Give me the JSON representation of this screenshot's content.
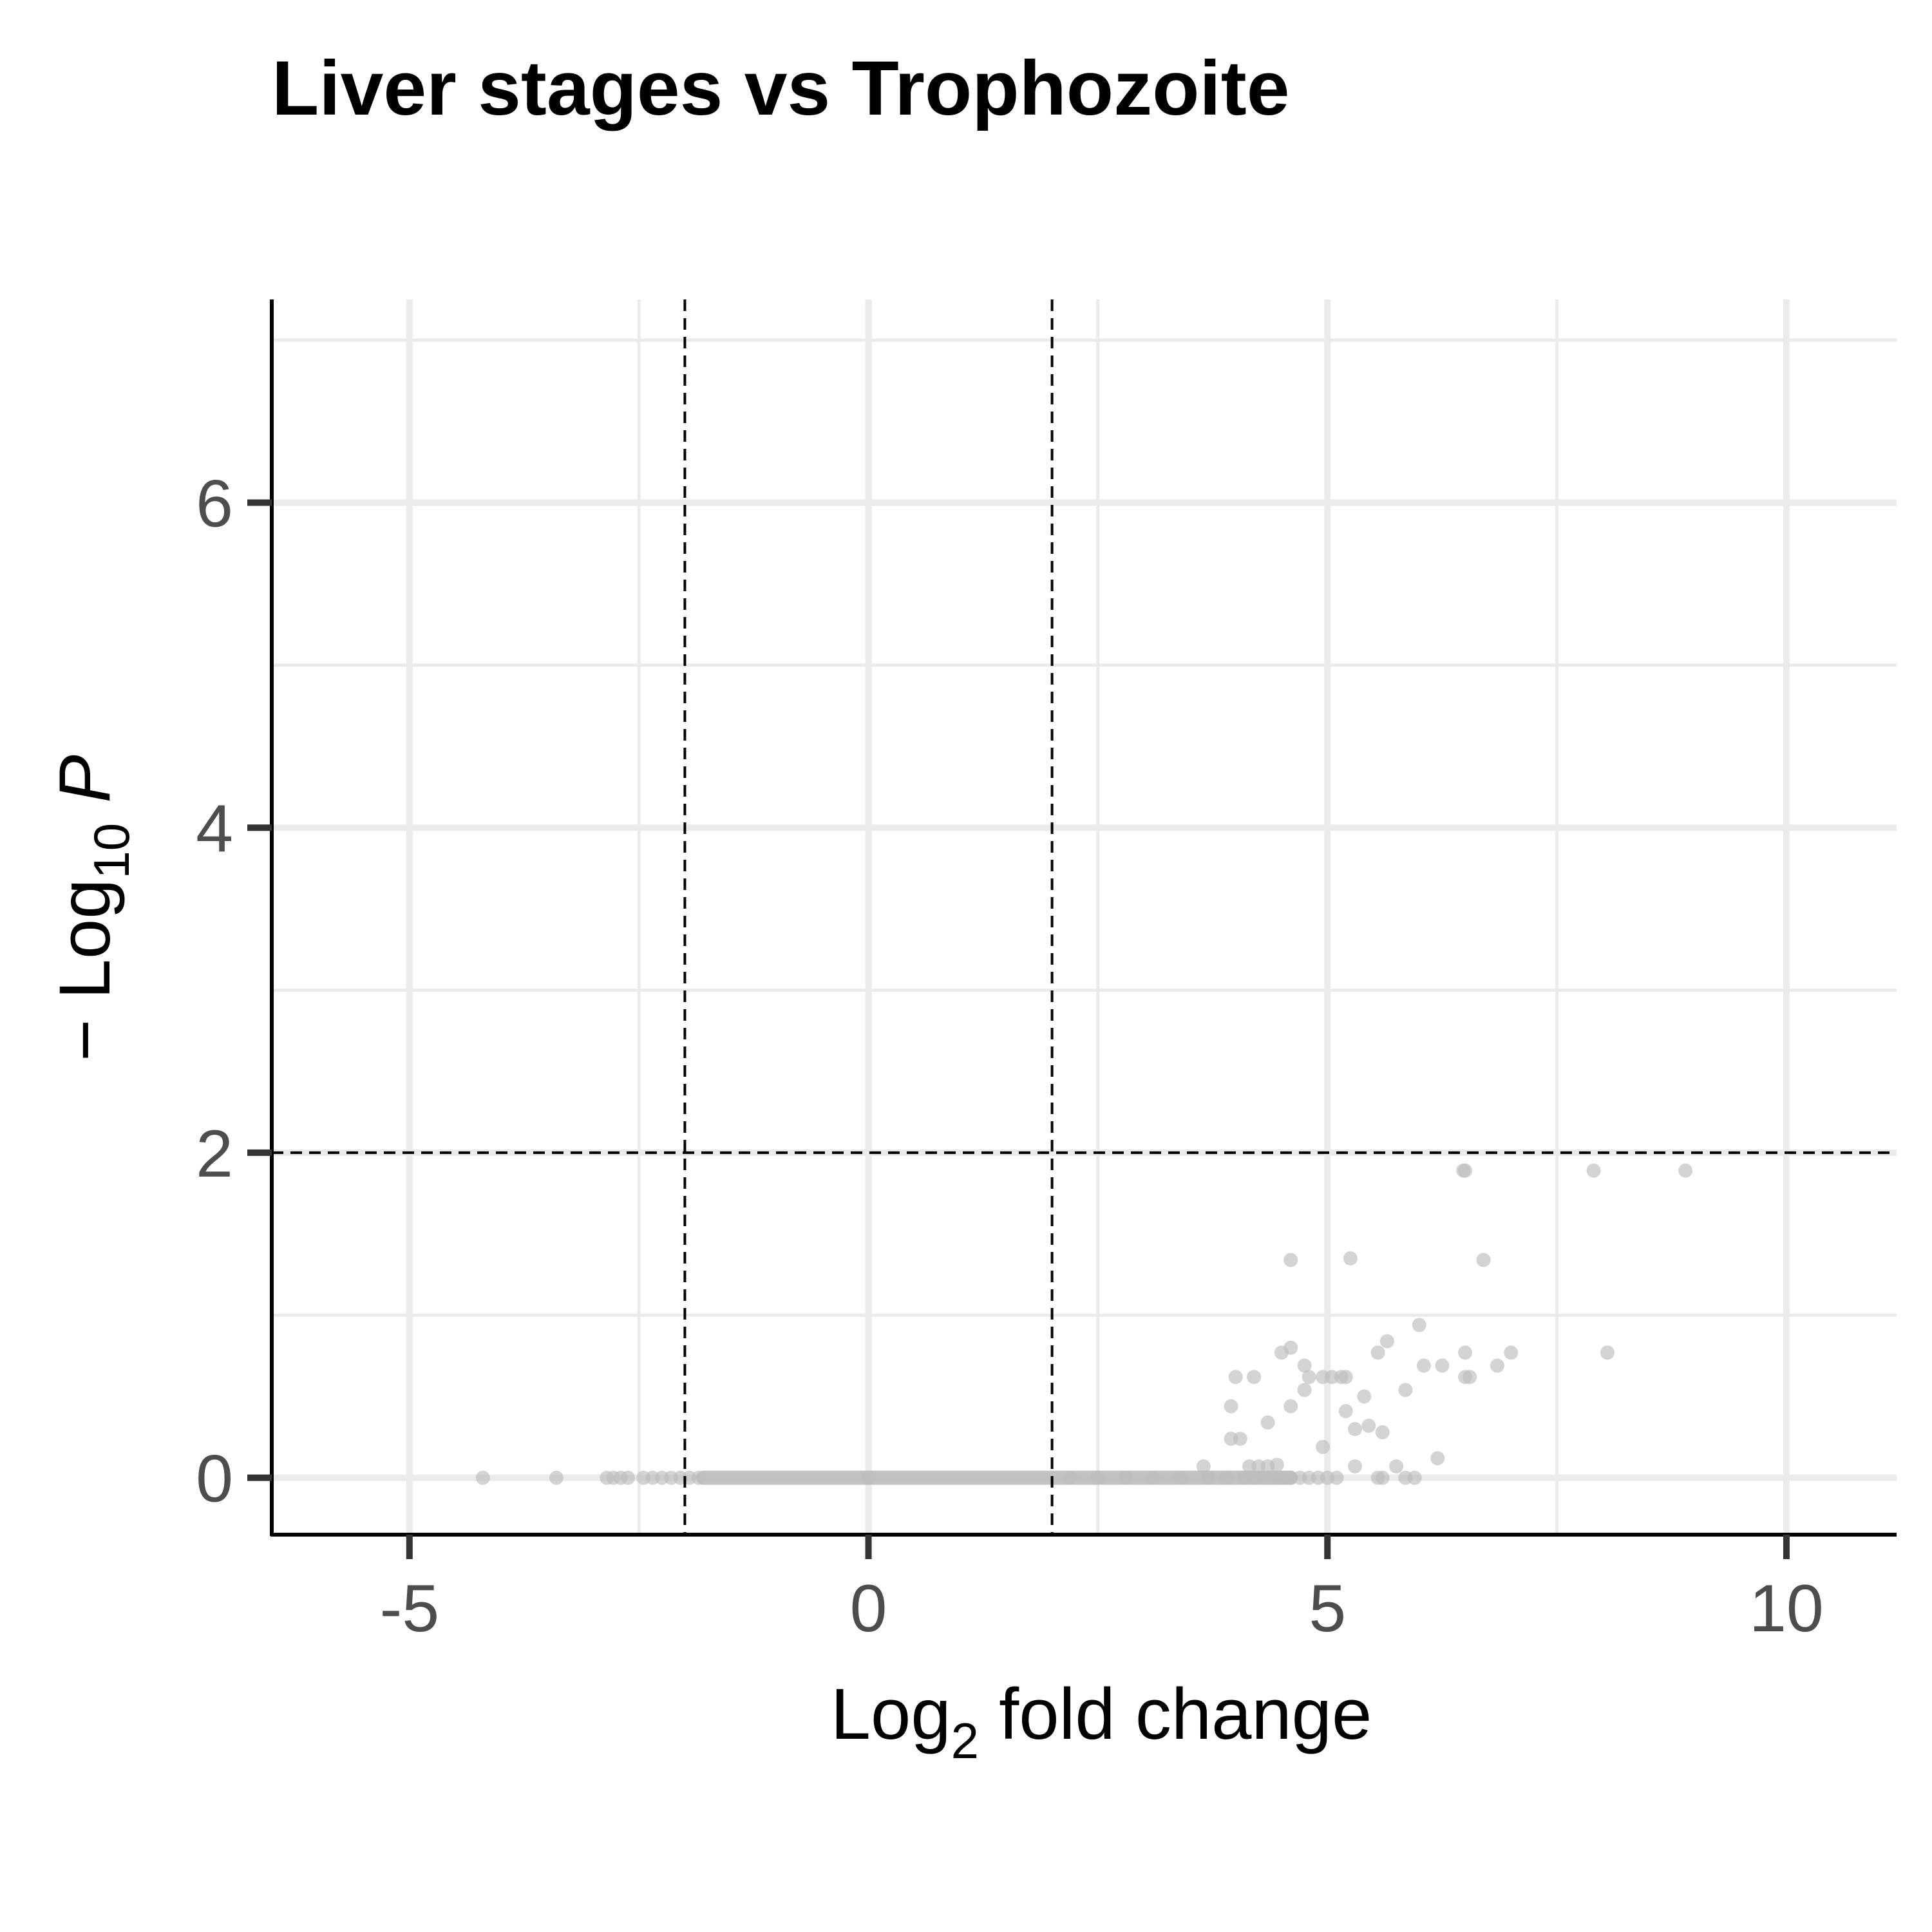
{
  "chart_data": {
    "type": "scatter",
    "title": "Liver stages vs Trophozoite",
    "xlabel": {
      "base": "Log",
      "sub": "2",
      "rest": " fold change"
    },
    "ylabel": {
      "prefix": "− Log",
      "sub": "10",
      "italic": " P"
    },
    "xlim": [
      -6.5,
      11.2
    ],
    "ylim": [
      -0.35,
      7.25
    ],
    "x_ticks": [
      -5,
      0,
      5,
      10
    ],
    "x_tick_labels": [
      "-5",
      "0",
      "5",
      "10"
    ],
    "y_ticks": [
      0,
      2,
      4,
      6
    ],
    "y_tick_labels": [
      "0",
      "2",
      "4",
      "6"
    ],
    "grid": true,
    "point_color": "#bdbdbd",
    "threshold_color": "#000000",
    "thresholds": {
      "x": [
        -2,
        2
      ],
      "y": 2
    },
    "series": [
      {
        "x": [
          -4.2,
          -3.4,
          -2.85,
          -2.78,
          -2.7,
          -2.62,
          -2.45,
          -2.35,
          -2.25,
          -2.15,
          -2.05,
          -1.95,
          -1.85,
          2.2,
          2.5,
          2.8,
          3.1,
          3.4,
          3.7,
          3.9,
          4.1,
          4.2,
          4.3,
          4.4,
          4.5,
          4.6,
          4.7,
          4.8,
          4.9,
          5.0,
          5.1,
          5.55,
          5.6,
          5.95,
          3.65,
          4.15,
          4.25,
          4.35,
          4.45,
          4.55,
          5.3,
          5.75,
          5.85,
          6.2,
          4.95,
          3.95,
          4.05,
          4.35,
          4.6,
          5.3,
          5.45,
          5.6,
          3.95,
          4.75,
          5.2,
          5.4,
          4.75,
          5.85,
          4.0,
          4.2,
          4.8,
          4.95,
          5.05,
          5.15,
          5.2,
          6.05,
          6.25,
          6.55,
          6.5,
          6.85,
          4.5,
          4.6,
          5.55,
          5.65,
          6.5,
          7.0,
          8.05,
          6.0,
          4.6,
          5.25,
          6.7,
          6.5,
          6.48,
          7.9,
          8.9,
          0.0
        ],
        "y": [
          0.0,
          0.0,
          0.0,
          0.0,
          0.0,
          0.0,
          0.0,
          0.0,
          0.0,
          0.0,
          0.0,
          0.0,
          0.0,
          0.0,
          0.0,
          0.0,
          0.0,
          0.0,
          0.0,
          0.0,
          0.0,
          0.0,
          0.0,
          0.0,
          0.0,
          0.0,
          0.0,
          0.0,
          0.0,
          0.0,
          0.0,
          0.0,
          0.0,
          0.0,
          0.07,
          0.07,
          0.07,
          0.07,
          0.08,
          0.0,
          0.07,
          0.07,
          0.0,
          0.12,
          0.19,
          0.24,
          0.24,
          0.34,
          0.44,
          0.3,
          0.32,
          0.28,
          0.44,
          0.54,
          0.41,
          0.5,
          0.69,
          0.54,
          0.62,
          0.62,
          0.62,
          0.62,
          0.62,
          0.62,
          0.62,
          0.69,
          0.69,
          0.62,
          0.62,
          0.69,
          0.77,
          0.8,
          0.77,
          0.84,
          0.77,
          0.77,
          0.77,
          0.94,
          1.34,
          1.35,
          1.34,
          1.89,
          1.89,
          1.89,
          1.89,
          0.0
        ]
      }
    ],
    "dense_band": {
      "x_from": -1.8,
      "x_to": 4.6,
      "y": 0
    }
  }
}
